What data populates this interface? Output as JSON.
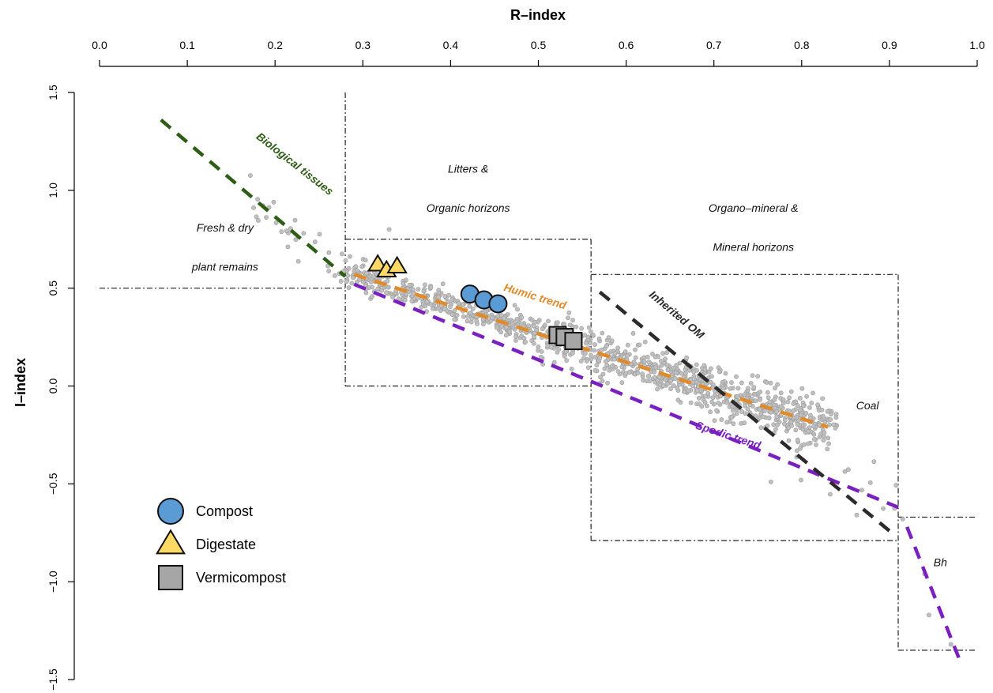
{
  "chart_data": {
    "type": "scatter",
    "xlabel": "R–index",
    "ylabel": "I–index",
    "xlim": [
      0.0,
      1.0
    ],
    "ylim": [
      -1.5,
      1.5
    ],
    "x_ticks": [
      "0.0",
      "0.1",
      "0.2",
      "0.3",
      "0.4",
      "0.5",
      "0.6",
      "0.7",
      "0.8",
      "0.9",
      "1.0"
    ],
    "y_ticks": [
      "1.5",
      "1.0",
      "0.5",
      "0.0",
      "−0.5",
      "−1.0",
      "−1.5"
    ],
    "x_axis_position": "top",
    "grid": false,
    "legend_position": "bottom-left",
    "region_labels": [
      {
        "text": "Fresh & dry",
        "x": 0.143,
        "y": 0.79
      },
      {
        "text": "plant remains",
        "x": 0.143,
        "y": 0.59
      },
      {
        "text": "Litters &",
        "x": 0.42,
        "y": 1.09
      },
      {
        "text": "Organic horizons",
        "x": 0.42,
        "y": 0.89
      },
      {
        "text": "Organo–mineral &",
        "x": 0.745,
        "y": 0.89
      },
      {
        "text": "Mineral horizons",
        "x": 0.745,
        "y": 0.69
      },
      {
        "text": "Coal",
        "x": 0.875,
        "y": -0.12
      },
      {
        "text": "Bh",
        "x": 0.958,
        "y": -0.92
      }
    ],
    "trend_lines": [
      {
        "name": "Biological tissues",
        "color": "#2e5e16",
        "points": [
          [
            0.07,
            1.36
          ],
          [
            0.28,
            0.56
          ]
        ],
        "label_x": 0.22,
        "label_y": 1.12,
        "label_angle": 38
      },
      {
        "name": "Humic trend",
        "color": "#e08a2a",
        "points": [
          [
            0.29,
            0.57
          ],
          [
            0.83,
            -0.21
          ]
        ],
        "label_x": 0.495,
        "label_y": 0.44,
        "label_angle": 17
      },
      {
        "name": "Spodic trend",
        "color": "#7a1fc0",
        "points": [
          [
            0.29,
            0.52
          ],
          [
            0.91,
            -0.62
          ]
        ],
        "label_x": 0.715,
        "label_y": -0.27,
        "label_angle": 18
      },
      {
        "name": "Inherited OM",
        "color": "#2b2b2b",
        "points": [
          [
            0.57,
            0.48
          ],
          [
            0.9,
            -0.74
          ]
        ],
        "label_x": 0.655,
        "label_y": 0.35,
        "label_angle": 40
      },
      {
        "name": "",
        "color": "#7a1fc0",
        "points": [
          [
            0.92,
            -0.72
          ],
          [
            0.98,
            -1.4
          ]
        ]
      }
    ],
    "regions": [
      {
        "x0": 0.0,
        "y0": 0.5,
        "x1": 0.28,
        "y1": 0.5,
        "type": "line"
      },
      {
        "x0": 0.28,
        "y0": 1.5,
        "x1": 0.28,
        "y1": 0.0,
        "type": "line"
      },
      {
        "x0": 0.28,
        "y0": 0.0,
        "x1": 0.56,
        "y1": 0.0,
        "type": "line"
      },
      {
        "x0": 0.28,
        "y0": 0.75,
        "x1": 0.56,
        "y1": 0.75,
        "type": "line"
      },
      {
        "x0": 0.56,
        "y0": 0.75,
        "x1": 0.56,
        "y1": -0.79,
        "type": "line"
      },
      {
        "x0": 0.56,
        "y0": 0.57,
        "x1": 0.91,
        "y1": 0.57,
        "type": "line"
      },
      {
        "x0": 0.56,
        "y0": -0.79,
        "x1": 0.91,
        "y1": -0.79,
        "type": "line"
      },
      {
        "x0": 0.91,
        "y0": 0.57,
        "x1": 0.91,
        "y1": -1.35,
        "type": "line"
      },
      {
        "x0": 0.91,
        "y0": -0.67,
        "x1": 1.0,
        "y1": -0.67,
        "type": "line"
      },
      {
        "x0": 0.91,
        "y0": -1.35,
        "x1": 1.0,
        "y1": -1.35,
        "type": "line"
      }
    ],
    "series": [
      {
        "name": "Compost",
        "marker": "circle",
        "color": "#5b9bd5",
        "x": [
          0.422,
          0.438,
          0.454
        ],
        "y": [
          0.47,
          0.44,
          0.42
        ]
      },
      {
        "name": "Digestate",
        "marker": "triangle",
        "color": "#ffd966",
        "x": [
          0.317,
          0.327,
          0.339
        ],
        "y": [
          0.62,
          0.59,
          0.61
        ]
      },
      {
        "name": "Vermicompost",
        "marker": "square",
        "color": "#a6a6a6",
        "x": [
          0.522,
          0.53,
          0.54
        ],
        "y": [
          0.26,
          0.25,
          0.23
        ]
      }
    ],
    "background_points_color": "#c0c0c0"
  }
}
